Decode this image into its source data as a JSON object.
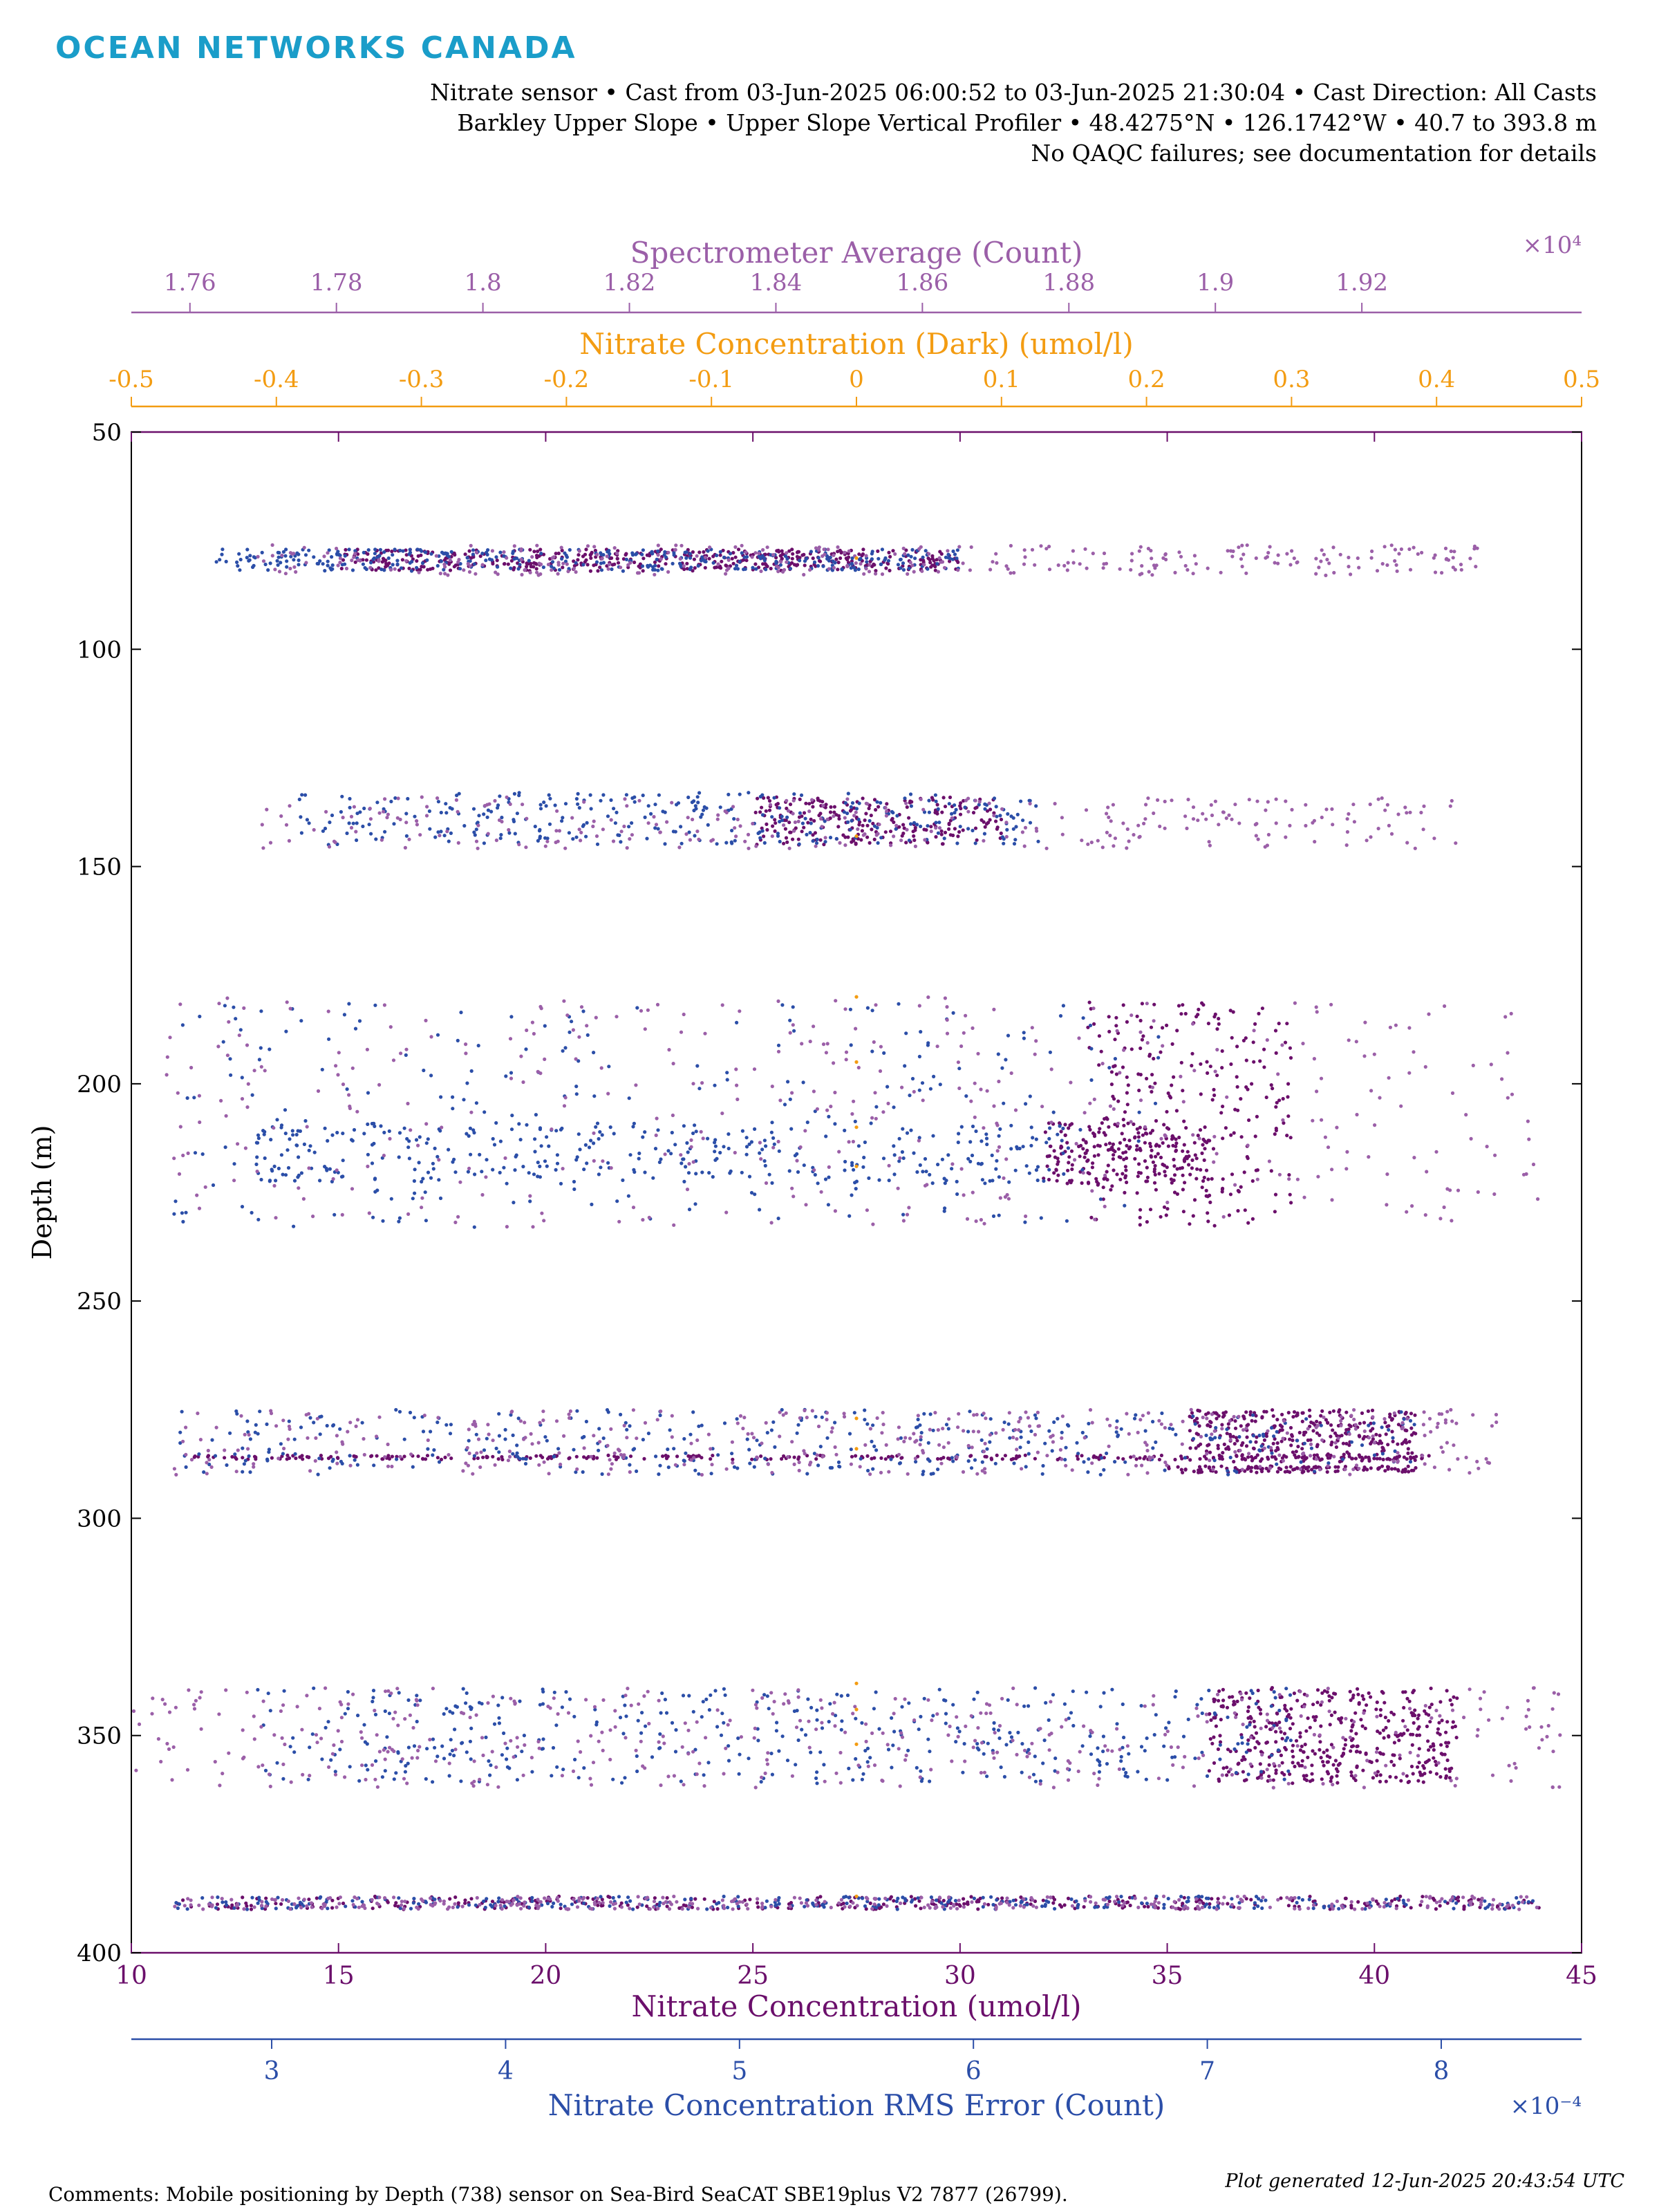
{
  "brand": "OCEAN NETWORKS CANADA",
  "header": {
    "line1": "Nitrate sensor • Cast from 03-Jun-2025 06:00:52 to 03-Jun-2025 21:30:04 • Cast Direction: All Casts",
    "line2": "Barkley Upper Slope • Upper Slope Vertical Profiler • 48.4275°N • 126.1742°W • 40.7 to 393.8 m",
    "line3": "No QAQC failures; see documentation for details"
  },
  "footer": {
    "comments": "Comments: Mobile positioning by Depth (738) sensor on Sea-Bird SeaCAT SBE19plus V2 7877 (26799).",
    "generated": "Plot generated 12-Jun-2025 20:43:54 UTC"
  },
  "colors": {
    "nitrate": "#6b0f6b",
    "rms": "#2b4ea8",
    "dark": "#f39c12",
    "spectrometer": "#9b5fa8",
    "axis": "#000000"
  },
  "chart_data": {
    "type": "scatter",
    "ylabel": "Depth (m)",
    "y_axis": {
      "lim": [
        50,
        400
      ],
      "ticks": [
        "50",
        "100",
        "150",
        "200",
        "250",
        "300",
        "350",
        "400"
      ],
      "reversed": true
    },
    "axes": {
      "nitrate": {
        "label": "Nitrate Concentration (umol/l)",
        "lim": [
          10,
          45
        ],
        "ticks": [
          "10",
          "15",
          "20",
          "25",
          "30",
          "35",
          "40",
          "45"
        ],
        "position": "bottom"
      },
      "rms": {
        "label": "Nitrate Concentration RMS Error (Count)",
        "lim": [
          2.4,
          8.6
        ],
        "ticks": [
          "3",
          "4",
          "5",
          "6",
          "7",
          "8"
        ],
        "exponent": "×10⁻⁴",
        "position": "bottom-offset"
      },
      "dark": {
        "label": "Nitrate Concentration (Dark) (umol/l)",
        "lim": [
          -0.5,
          0.5
        ],
        "ticks": [
          "-0.5",
          "-0.4",
          "-0.3",
          "-0.2",
          "-0.1",
          "0",
          "0.1",
          "0.2",
          "0.3",
          "0.4",
          "0.5"
        ],
        "position": "top"
      },
      "spectrometer": {
        "label": "Spectrometer Average (Count)",
        "lim": [
          1.752,
          1.95
        ],
        "ticks": [
          "1.76",
          "1.78",
          "1.8",
          "1.82",
          "1.84",
          "1.86",
          "1.88",
          "1.9",
          "1.92"
        ],
        "exponent": "×10⁴",
        "position": "top-offset"
      }
    },
    "series": [
      {
        "name": "Nitrate Concentration (umol/l)",
        "axis": "nitrate",
        "clusters": [
          {
            "x": [
              15,
              30
            ],
            "y": [
              77,
              82
            ],
            "n": 460
          },
          {
            "x": [
              25,
              31
            ],
            "y": [
              134,
              145
            ],
            "n": 230
          },
          {
            "x": [
              33,
              38
            ],
            "y": [
              181,
              233
            ],
            "n": 260
          },
          {
            "x": [
              32,
              36
            ],
            "y": [
              209,
              223
            ],
            "n": 210
          },
          {
            "x": [
              35.5,
              41
            ],
            "y": [
              275,
              287
            ],
            "n": 320
          },
          {
            "x": [
              11.5,
              41.5
            ],
            "y": [
              285.5,
              286.5
            ],
            "n": 260
          },
          {
            "x": [
              35,
              41
            ],
            "y": [
              288,
              289.5
            ],
            "n": 120
          },
          {
            "x": [
              36,
              42
            ],
            "y": [
              339,
              361
            ],
            "n": 420
          },
          {
            "x": [
              11,
              44
            ],
            "y": [
              387,
              390
            ],
            "n": 360
          }
        ]
      },
      {
        "name": "Nitrate Concentration RMS Error (Count)",
        "axis": "nitrate",
        "clusters": [
          {
            "x": [
              12,
              30
            ],
            "y": [
              77,
              82
            ],
            "n": 360
          },
          {
            "x": [
              14,
              32
            ],
            "y": [
              133,
              145
            ],
            "n": 320
          },
          {
            "x": [
              11,
              35
            ],
            "y": [
              181,
              233
            ],
            "n": 250
          },
          {
            "x": [
              13,
              33
            ],
            "y": [
              209,
              223
            ],
            "n": 320
          },
          {
            "x": [
              11,
              41
            ],
            "y": [
              275,
              290
            ],
            "n": 380
          },
          {
            "x": [
              13,
              38
            ],
            "y": [
              339,
              361
            ],
            "n": 420
          },
          {
            "x": [
              11,
              44
            ],
            "y": [
              387,
              390
            ],
            "n": 300
          }
        ]
      },
      {
        "name": "Spectrometer Average (Count)",
        "axis": "nitrate",
        "clusters": [
          {
            "x": [
              13,
              42.5
            ],
            "y": [
              76,
              83
            ],
            "n": 330
          },
          {
            "x": [
              13,
              42
            ],
            "y": [
              134,
              146
            ],
            "n": 300
          },
          {
            "x": [
              10.5,
              44
            ],
            "y": [
              180,
              233
            ],
            "n": 420
          },
          {
            "x": [
              11,
              43
            ],
            "y": [
              275,
              290
            ],
            "n": 420
          },
          {
            "x": [
              10,
              44.5
            ],
            "y": [
              339,
              362
            ],
            "n": 450
          },
          {
            "x": [
              11,
              44
            ],
            "y": [
              387,
              390
            ],
            "n": 340
          }
        ]
      },
      {
        "name": "Nitrate Concentration (Dark) (umol/l)",
        "axis": "nitrate",
        "points": [
          [
            27.5,
            79
          ],
          [
            27.5,
            143
          ],
          [
            27.5,
            180
          ],
          [
            27.5,
            195
          ],
          [
            27.5,
            210
          ],
          [
            27.5,
            219
          ],
          [
            27.5,
            277
          ],
          [
            27.5,
            284
          ],
          [
            27.5,
            338
          ],
          [
            27.5,
            344
          ],
          [
            27.5,
            352
          ],
          [
            27.5,
            387
          ]
        ]
      }
    ]
  }
}
